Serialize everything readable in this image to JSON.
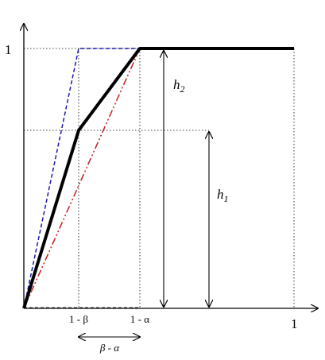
{
  "diagram": {
    "y_axis_tick": "1",
    "x_axis_tick": "1",
    "x_tick_beta": "1 - β",
    "x_tick_alpha": "1 - α",
    "width_label": "β - α",
    "h1_label": "h",
    "h1_sub": "1",
    "h2_label": "h",
    "h2_sub": "2"
  },
  "colors": {
    "solid_curve": "#000000",
    "blue_curve": "#1a1aa8",
    "red_curve": "#c0201e"
  }
}
